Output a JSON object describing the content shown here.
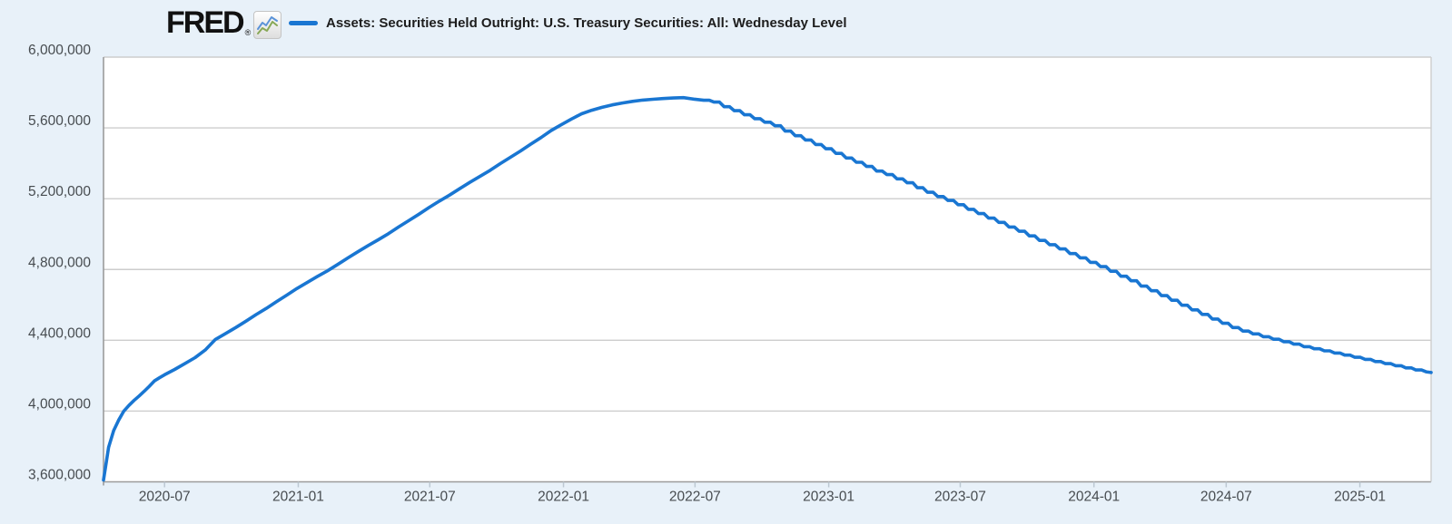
{
  "header": {
    "logo_text": "FRED",
    "registered_mark": "®",
    "legend": {
      "swatch_color": "#1976d2",
      "label": "Assets: Securities Held Outright: U.S. Treasury Securities: All: Wednesday Level"
    }
  },
  "colors": {
    "page_background": "#e8f1f9",
    "plot_background": "#ffffff",
    "gridline": "#cdcdcd",
    "axis_line": "#9b9b9b",
    "tick_mark": "#bcc8d2",
    "axis_label_text": "#474c50",
    "line": "#1976d2",
    "logo_icon_blue": "#5b93d8",
    "logo_icon_green": "#88a857"
  },
  "chart_data": {
    "type": "line",
    "title": "Assets: Securities Held Outright: U.S. Treasury Securities: All: Wednesday Level",
    "legend_position": "top",
    "grid": true,
    "line_color": "#1976d2",
    "ylim": [
      3600000,
      6000000
    ],
    "x_range": [
      "2020-04-08",
      "2025-04-09"
    ],
    "y_ticks": [
      {
        "label": "6,000,000",
        "value": 6000000
      },
      {
        "label": "5,600,000",
        "value": 5600000
      },
      {
        "label": "5,200,000",
        "value": 5200000
      },
      {
        "label": "4,800,000",
        "value": 4800000
      },
      {
        "label": "4,400,000",
        "value": 4400000
      },
      {
        "label": "4,000,000",
        "value": 4000000
      },
      {
        "label": "3,600,000",
        "value": 3600000
      }
    ],
    "x_ticks": [
      {
        "label": "2020-07",
        "date": "2020-07-01"
      },
      {
        "label": "2021-01",
        "date": "2021-01-01"
      },
      {
        "label": "2021-07",
        "date": "2021-07-01"
      },
      {
        "label": "2022-01",
        "date": "2022-01-01"
      },
      {
        "label": "2022-07",
        "date": "2022-07-01"
      },
      {
        "label": "2023-01",
        "date": "2023-01-01"
      },
      {
        "label": "2023-07",
        "date": "2023-07-01"
      },
      {
        "label": "2024-01",
        "date": "2024-01-01"
      },
      {
        "label": "2024-07",
        "date": "2024-07-01"
      },
      {
        "label": "2025-01",
        "date": "2025-01-01"
      }
    ],
    "series": [
      {
        "name": "Assets: Securities Held Outright: U.S. Treasury Securities: All: Wednesday Level",
        "points": [
          [
            "2020-04-08",
            3610000
          ],
          [
            "2020-04-15",
            3795000
          ],
          [
            "2020-04-22",
            3890000
          ],
          [
            "2020-04-29",
            3950000
          ],
          [
            "2020-05-06",
            4000000
          ],
          [
            "2020-05-13",
            4032000
          ],
          [
            "2020-05-20",
            4060000
          ],
          [
            "2020-05-27",
            4085000
          ],
          [
            "2020-06-03",
            4112000
          ],
          [
            "2020-06-10",
            4140000
          ],
          [
            "2020-06-17",
            4170000
          ],
          [
            "2020-06-24",
            4188000
          ],
          [
            "2020-07-01",
            4205000
          ],
          [
            "2020-07-15",
            4235000
          ],
          [
            "2020-07-29",
            4268000
          ],
          [
            "2020-08-12",
            4302000
          ],
          [
            "2020-08-26",
            4345000
          ],
          [
            "2020-09-09",
            4405000
          ],
          [
            "2020-09-23",
            4438000
          ],
          [
            "2020-10-07",
            4472000
          ],
          [
            "2020-10-21",
            4508000
          ],
          [
            "2020-11-04",
            4545000
          ],
          [
            "2020-11-18",
            4580000
          ],
          [
            "2020-12-02",
            4618000
          ],
          [
            "2020-12-16",
            4655000
          ],
          [
            "2020-12-30",
            4692000
          ],
          [
            "2021-01-13",
            4726000
          ],
          [
            "2021-01-27",
            4760000
          ],
          [
            "2021-02-10",
            4792000
          ],
          [
            "2021-02-24",
            4828000
          ],
          [
            "2021-03-10",
            4865000
          ],
          [
            "2021-03-24",
            4900000
          ],
          [
            "2021-04-07",
            4935000
          ],
          [
            "2021-04-21",
            4968000
          ],
          [
            "2021-05-05",
            5002000
          ],
          [
            "2021-05-19",
            5040000
          ],
          [
            "2021-06-02",
            5076000
          ],
          [
            "2021-06-16",
            5112000
          ],
          [
            "2021-06-30",
            5150000
          ],
          [
            "2021-07-14",
            5186000
          ],
          [
            "2021-07-28",
            5220000
          ],
          [
            "2021-08-11",
            5256000
          ],
          [
            "2021-08-25",
            5292000
          ],
          [
            "2021-09-08",
            5326000
          ],
          [
            "2021-09-22",
            5360000
          ],
          [
            "2021-10-06",
            5398000
          ],
          [
            "2021-10-20",
            5434000
          ],
          [
            "2021-11-03",
            5470000
          ],
          [
            "2021-11-17",
            5508000
          ],
          [
            "2021-12-01",
            5545000
          ],
          [
            "2021-12-15",
            5585000
          ],
          [
            "2021-12-29",
            5618000
          ],
          [
            "2022-01-12",
            5650000
          ],
          [
            "2022-01-26",
            5680000
          ],
          [
            "2022-02-09",
            5700000
          ],
          [
            "2022-02-23",
            5716000
          ],
          [
            "2022-03-09",
            5730000
          ],
          [
            "2022-03-23",
            5741000
          ],
          [
            "2022-04-06",
            5750000
          ],
          [
            "2022-04-20",
            5757000
          ],
          [
            "2022-05-04",
            5762000
          ],
          [
            "2022-05-18",
            5766000
          ],
          [
            "2022-06-01",
            5769000
          ],
          [
            "2022-06-15",
            5771000
          ],
          [
            "2022-06-29",
            5763000
          ],
          [
            "2022-07-13",
            5756000
          ],
          [
            "2022-07-27",
            5746000
          ],
          [
            "2022-08-10",
            5720000
          ],
          [
            "2022-08-24",
            5697000
          ],
          [
            "2022-09-07",
            5674000
          ],
          [
            "2022-09-21",
            5652000
          ],
          [
            "2022-10-05",
            5632000
          ],
          [
            "2022-10-19",
            5612000
          ],
          [
            "2022-11-02",
            5582000
          ],
          [
            "2022-11-16",
            5556000
          ],
          [
            "2022-11-30",
            5532000
          ],
          [
            "2022-12-14",
            5506000
          ],
          [
            "2022-12-28",
            5482000
          ],
          [
            "2023-01-11",
            5456000
          ],
          [
            "2023-01-25",
            5430000
          ],
          [
            "2023-02-08",
            5406000
          ],
          [
            "2023-02-22",
            5382000
          ],
          [
            "2023-03-08",
            5356000
          ],
          [
            "2023-03-22",
            5336000
          ],
          [
            "2023-04-05",
            5312000
          ],
          [
            "2023-04-19",
            5290000
          ],
          [
            "2023-05-03",
            5262000
          ],
          [
            "2023-05-17",
            5236000
          ],
          [
            "2023-05-31",
            5212000
          ],
          [
            "2023-06-14",
            5190000
          ],
          [
            "2023-06-28",
            5166000
          ],
          [
            "2023-07-12",
            5140000
          ],
          [
            "2023-07-26",
            5116000
          ],
          [
            "2023-08-09",
            5090000
          ],
          [
            "2023-08-23",
            5066000
          ],
          [
            "2023-09-06",
            5040000
          ],
          [
            "2023-09-20",
            5016000
          ],
          [
            "2023-10-04",
            4990000
          ],
          [
            "2023-10-18",
            4964000
          ],
          [
            "2023-11-01",
            4940000
          ],
          [
            "2023-11-15",
            4916000
          ],
          [
            "2023-11-29",
            4890000
          ],
          [
            "2023-12-13",
            4866000
          ],
          [
            "2023-12-27",
            4840000
          ],
          [
            "2024-01-10",
            4816000
          ],
          [
            "2024-01-24",
            4790000
          ],
          [
            "2024-02-07",
            4762000
          ],
          [
            "2024-02-21",
            4736000
          ],
          [
            "2024-03-06",
            4706000
          ],
          [
            "2024-03-20",
            4680000
          ],
          [
            "2024-04-03",
            4652000
          ],
          [
            "2024-04-17",
            4626000
          ],
          [
            "2024-05-01",
            4598000
          ],
          [
            "2024-05-15",
            4572000
          ],
          [
            "2024-05-29",
            4546000
          ],
          [
            "2024-06-12",
            4520000
          ],
          [
            "2024-06-26",
            4496000
          ],
          [
            "2024-07-10",
            4472000
          ],
          [
            "2024-07-24",
            4452000
          ],
          [
            "2024-08-07",
            4436000
          ],
          [
            "2024-08-21",
            4420000
          ],
          [
            "2024-09-04",
            4406000
          ],
          [
            "2024-09-18",
            4392000
          ],
          [
            "2024-10-02",
            4378000
          ],
          [
            "2024-10-16",
            4364000
          ],
          [
            "2024-10-30",
            4352000
          ],
          [
            "2024-11-13",
            4340000
          ],
          [
            "2024-11-27",
            4328000
          ],
          [
            "2024-12-11",
            4316000
          ],
          [
            "2024-12-25",
            4304000
          ],
          [
            "2025-01-08",
            4292000
          ],
          [
            "2025-01-22",
            4280000
          ],
          [
            "2025-02-05",
            4268000
          ],
          [
            "2025-02-19",
            4256000
          ],
          [
            "2025-03-05",
            4244000
          ],
          [
            "2025-03-19",
            4232000
          ],
          [
            "2025-04-02",
            4222000
          ],
          [
            "2025-04-09",
            4218000
          ]
        ]
      }
    ]
  }
}
